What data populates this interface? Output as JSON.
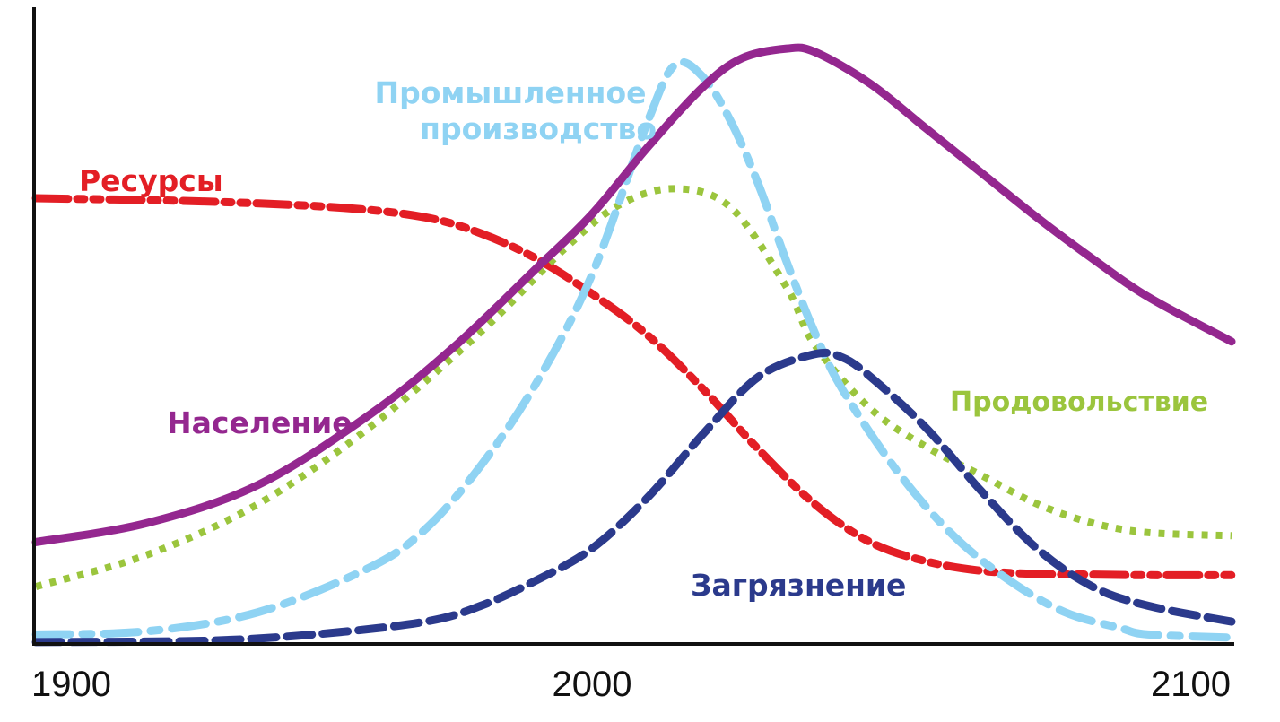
{
  "chart_data": {
    "type": "line",
    "title": "",
    "xlabel": "",
    "ylabel": "",
    "xlim": [
      1900,
      2115
    ],
    "ylim": [
      0,
      100
    ],
    "grid": false,
    "legend": "none",
    "x_ticks": [
      1900,
      2000,
      2100
    ],
    "x_tick_labels": [
      "1900",
      "2000",
      "2100"
    ],
    "series": [
      {
        "name": "Ресурсы",
        "key": "resources",
        "color": "#e31e25",
        "dash": "dash-dot-dot",
        "x": [
          1900,
          1930,
          1955,
          1970,
          1980,
          1990,
          2000,
          2010,
          2020,
          2030,
          2040,
          2050,
          2060,
          2070,
          2080,
          2090,
          2100,
          2115
        ],
        "y": [
          70,
          69.5,
          68.5,
          67,
          64.5,
          60.5,
          55,
          48.5,
          40,
          30.5,
          22,
          16,
          13,
          11.5,
          11,
          10.9,
          10.8,
          10.8
        ]
      },
      {
        "name": "Население",
        "key": "population",
        "color": "#94278f",
        "dash": "solid",
        "x": [
          1900,
          1920,
          1940,
          1960,
          1975,
          1990,
          2000,
          2010,
          2020,
          2027,
          2035,
          2040,
          2050,
          2060,
          2070,
          2080,
          2090,
          2100,
          2115
        ],
        "y": [
          16,
          19,
          25,
          36,
          46.5,
          59,
          67.5,
          78,
          87.5,
          92,
          93.5,
          93,
          88,
          81,
          74,
          67,
          60.5,
          54.5,
          47.5
        ]
      },
      {
        "name": "Продовольствие",
        "key": "food",
        "color": "#9bc53d",
        "dash": "dotted",
        "x": [
          1900,
          1920,
          1940,
          1960,
          1980,
          1995,
          2005,
          2015,
          2025,
          2035,
          2040,
          2050,
          2060,
          2070,
          2080,
          2090,
          2100,
          2115
        ],
        "y": [
          9,
          14,
          22,
          34,
          49,
          62,
          69,
          71.5,
          68.5,
          56,
          47,
          37,
          31,
          26.5,
          22,
          19,
          17.5,
          17
        ]
      },
      {
        "name": "Промышленное производство",
        "key": "industry",
        "color": "#8fd3f3",
        "dash": "dash-dot",
        "x": [
          1900,
          1920,
          1940,
          1960,
          1970,
          1980,
          1990,
          2000,
          2010,
          2015,
          2020,
          2025,
          2030,
          2035,
          2040,
          2045,
          2055,
          2065,
          2075,
          2085,
          2095,
          2100,
          2115
        ],
        "y": [
          1.5,
          2,
          5,
          12,
          18,
          28,
          41,
          58,
          82,
          91,
          89,
          82,
          72,
          60,
          49,
          40,
          27,
          17,
          10,
          5,
          2.5,
          1.5,
          1
        ]
      },
      {
        "name": "Загрязнение",
        "key": "pollution",
        "color": "#2b3a8c",
        "dash": "dashed",
        "x": [
          1900,
          1930,
          1950,
          1970,
          1980,
          1990,
          2000,
          2010,
          2020,
          2030,
          2040,
          2045,
          2050,
          2060,
          2070,
          2080,
          2090,
          2100,
          2115
        ],
        "y": [
          0.3,
          0.5,
          1.5,
          3.5,
          6,
          10,
          15,
          23,
          33,
          42,
          45.5,
          45,
          42,
          34,
          24,
          15,
          9,
          6,
          3.5
        ]
      }
    ]
  }
}
